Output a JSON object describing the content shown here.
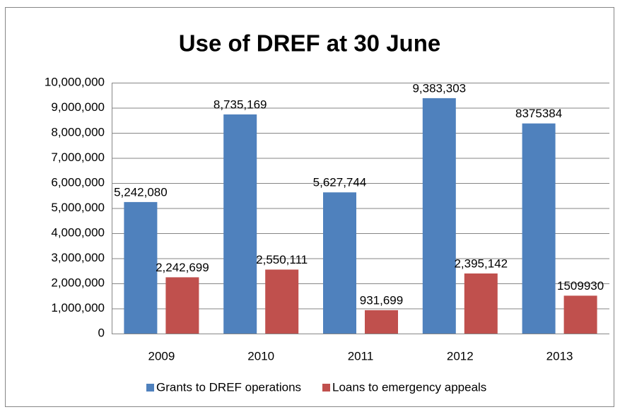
{
  "chart_data": {
    "type": "bar",
    "title": "Use of DREF at 30 June",
    "categories": [
      "2009",
      "2010",
      "2011",
      "2012",
      "2013"
    ],
    "series": [
      {
        "name": "Grants to DREF operations",
        "color": "#4f81bd",
        "values": [
          5242080,
          8735169,
          5627744,
          9383303,
          8375384
        ],
        "value_labels": [
          "5,242,080",
          "8,735,169",
          "5,627,744",
          "9,383,303",
          "8375384"
        ]
      },
      {
        "name": "Loans to emergency appeals",
        "color": "#c0504d",
        "values": [
          2242699,
          2550111,
          931699,
          2395142,
          1509930
        ],
        "value_labels": [
          "2,242,699",
          "2,550,111",
          "931,699",
          "2,395,142",
          "1509930"
        ]
      }
    ],
    "ylim": [
      0,
      10000000
    ],
    "yticks": [
      0,
      {
        "value": 1000000,
        "label": "1,000,000"
      },
      {
        "value": 2000000,
        "label": "2,000,000"
      },
      {
        "value": 3000000,
        "label": "3,000,000"
      },
      {
        "value": 4000000,
        "label": "4,000,000"
      },
      {
        "value": 5000000,
        "label": "5,000,000"
      },
      {
        "value": 6000000,
        "label": "6,000,000"
      },
      {
        "value": 7000000,
        "label": "7,000,000"
      },
      {
        "value": 8000000,
        "label": "8,000,000"
      },
      {
        "value": 9000000,
        "label": "9,000,000"
      },
      {
        "value": 10000000,
        "label": "10,000,000"
      }
    ],
    "grid": true,
    "legend": "bottom"
  }
}
